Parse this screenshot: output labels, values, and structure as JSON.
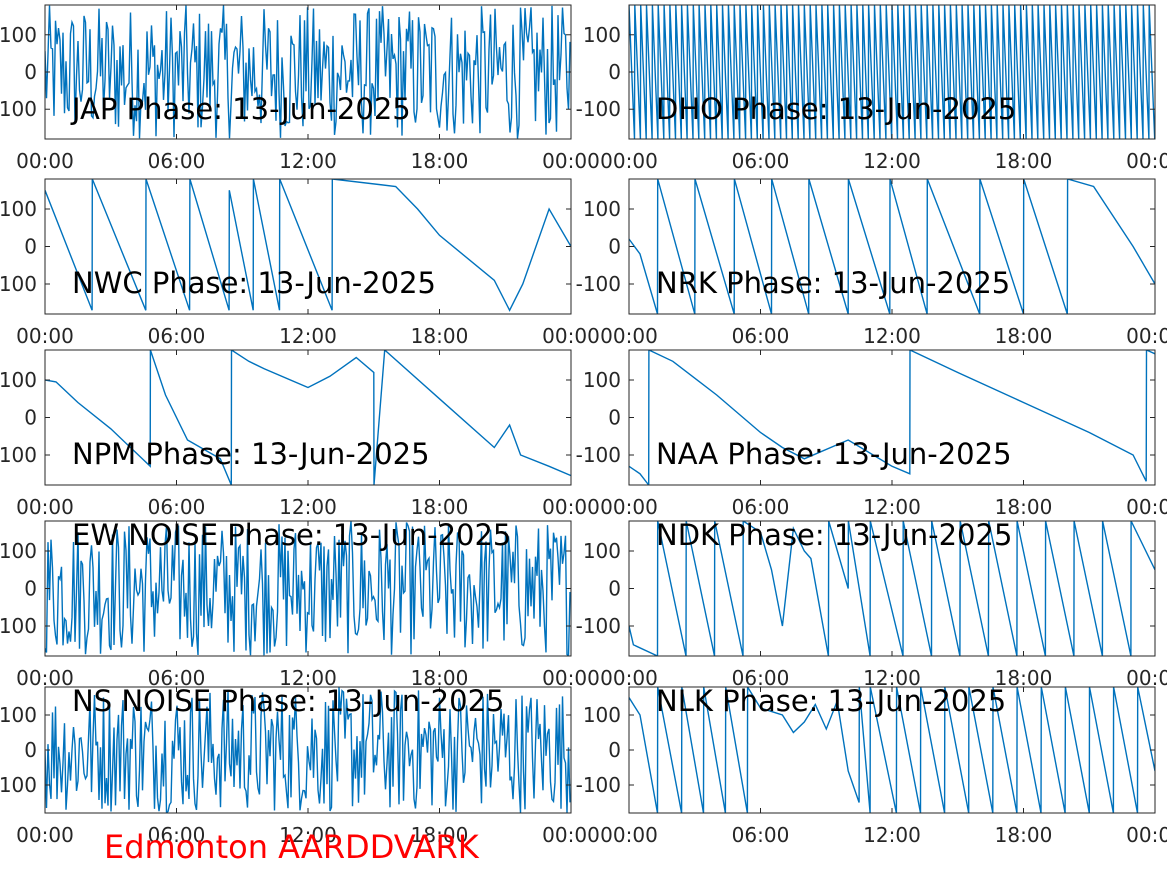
{
  "footer_label": "Edmonton AARDDVARK",
  "trace_color": "#0072BD",
  "chart_data": [
    {
      "type": "line",
      "title": "JAP Phase: 13-Jun-2025",
      "pattern": "noise",
      "xticklabels": [
        "00:00",
        "06:00",
        "12:00",
        "18:00",
        "00:00"
      ],
      "yticklabels": [
        "100",
        "0",
        "100"
      ],
      "xlim_hours": [
        0,
        24
      ],
      "ylim": [
        -180,
        180
      ],
      "x_hours": [
        0,
        24
      ],
      "y": [
        0,
        0
      ]
    },
    {
      "type": "line",
      "title": "DHO Phase: 13-Jun-2025",
      "pattern": "fastwrap",
      "xticklabels": [
        "00:00",
        "06:00",
        "12:00",
        "18:00",
        "00:00"
      ],
      "yticklabels": [
        "100",
        "0",
        "-100"
      ],
      "xlim_hours": [
        0,
        24
      ],
      "ylim": [
        -180,
        180
      ],
      "x_hours": [
        0,
        24
      ],
      "y": [
        0,
        0
      ]
    },
    {
      "type": "line",
      "title": "NWC Phase: 13-Jun-2025",
      "pattern": "trace",
      "xticklabels": [
        "00:00",
        "06:00",
        "12:00",
        "18:00",
        "00:00"
      ],
      "yticklabels": [
        "100",
        "0",
        "100"
      ],
      "xlim_hours": [
        0,
        24
      ],
      "ylim": [
        -180,
        180
      ],
      "x_hours": [
        0.0,
        2.15,
        2.16,
        4.6,
        4.61,
        6.6,
        6.61,
        8.4,
        8.41,
        9.5,
        9.51,
        10.7,
        10.71,
        13.1,
        13.11,
        16.0,
        17.0,
        18.0,
        20.5,
        21.2,
        21.8,
        23.0,
        24.0
      ],
      "y": [
        150,
        -170,
        180,
        -170,
        180,
        -170,
        180,
        -170,
        150,
        -170,
        180,
        -170,
        180,
        -170,
        180,
        160,
        100,
        30,
        -90,
        -170,
        -100,
        100,
        0
      ]
    },
    {
      "type": "line",
      "title": "NRK Phase: 13-Jun-2025",
      "pattern": "trace",
      "xticklabels": [
        "00:00",
        "06:00",
        "12:00",
        "18:00",
        "00:00"
      ],
      "yticklabels": [
        "100",
        "0",
        "-100"
      ],
      "xlim_hours": [
        0,
        24
      ],
      "ylim": [
        -180,
        180
      ],
      "x_hours": [
        0.0,
        0.5,
        1.3,
        1.31,
        3.0,
        3.01,
        4.8,
        4.81,
        6.5,
        6.51,
        8.2,
        8.21,
        10.0,
        10.01,
        11.9,
        11.91,
        13.6,
        13.61,
        16.0,
        16.01,
        18.0,
        18.01,
        20.0,
        20.01,
        21.2,
        23.0,
        24.0
      ],
      "y": [
        20,
        -20,
        -180,
        180,
        -180,
        180,
        -180,
        180,
        -180,
        180,
        -180,
        180,
        -180,
        180,
        -180,
        180,
        -180,
        180,
        -180,
        180,
        -180,
        180,
        -180,
        180,
        160,
        0,
        -100
      ]
    },
    {
      "type": "line",
      "title": "NPM Phase: 13-Jun-2025",
      "pattern": "trace",
      "xticklabels": [
        "00:00",
        "06:00",
        "12:00",
        "18:00",
        "00:00"
      ],
      "yticklabels": [
        "100",
        "0",
        "100"
      ],
      "xlim_hours": [
        0,
        24
      ],
      "ylim": [
        -180,
        180
      ],
      "x_hours": [
        0.0,
        0.5,
        1.5,
        3.0,
        4.8,
        4.81,
        5.5,
        6.5,
        8.0,
        8.5,
        8.51,
        9.3,
        10.0,
        12.0,
        13.0,
        14.2,
        15.0,
        15.01,
        15.5,
        18.0,
        20.5,
        21.2,
        21.7,
        23.0,
        24.0
      ],
      "y": [
        100,
        95,
        40,
        -30,
        -130,
        180,
        60,
        -60,
        -110,
        -180,
        180,
        150,
        130,
        80,
        110,
        160,
        120,
        -180,
        180,
        50,
        -80,
        -20,
        -100,
        -130,
        -155
      ]
    },
    {
      "type": "line",
      "title": "NAA Phase: 13-Jun-2025",
      "pattern": "trace",
      "xticklabels": [
        "00:00",
        "06:00",
        "12:00",
        "18:00",
        "00:00"
      ],
      "yticklabels": [
        "100",
        "0",
        "-100"
      ],
      "xlim_hours": [
        0,
        24
      ],
      "ylim": [
        -180,
        180
      ],
      "x_hours": [
        0.0,
        0.5,
        0.9,
        0.91,
        2.0,
        4.0,
        6.0,
        7.0,
        8.0,
        10.0,
        12.0,
        12.81,
        12.82,
        15.0,
        18.0,
        21.0,
        23.0,
        23.6,
        23.61,
        24.0
      ],
      "y": [
        -130,
        -150,
        -180,
        180,
        150,
        60,
        -40,
        -80,
        -110,
        -60,
        -130,
        -150,
        180,
        120,
        40,
        -40,
        -100,
        -170,
        180,
        170
      ]
    },
    {
      "type": "line",
      "title": "EW NOISE Phase: 13-Jun-2025",
      "pattern": "noise",
      "xticklabels": [
        "00:00",
        "06:00",
        "12:00",
        "18:00",
        "00:00"
      ],
      "yticklabels": [
        "100",
        "0",
        "100"
      ],
      "xlim_hours": [
        0,
        24
      ],
      "ylim": [
        -180,
        180
      ],
      "x_hours": [
        0,
        24
      ],
      "y": [
        0,
        0
      ]
    },
    {
      "type": "line",
      "title": "NDK Phase: 13-Jun-2025",
      "pattern": "trace",
      "xticklabels": [
        "00:00",
        "06:00",
        "12:00",
        "18:00",
        "00:00"
      ],
      "yticklabels": [
        "100",
        "0",
        "-100"
      ],
      "xlim_hours": [
        0,
        24
      ],
      "ylim": [
        -180,
        180
      ],
      "x_hours": [
        0.0,
        0.2,
        1.3,
        1.31,
        2.6,
        2.61,
        3.9,
        3.91,
        5.2,
        5.21,
        6.0,
        6.5,
        7.0,
        7.5,
        8.0,
        8.3,
        9.1,
        9.11,
        10.0,
        10.01,
        11.0,
        11.01,
        12.5,
        12.51,
        13.8,
        13.81,
        15.1,
        15.11,
        16.4,
        16.41,
        17.7,
        17.71,
        19.0,
        19.01,
        20.3,
        20.31,
        21.6,
        21.61,
        22.9,
        22.91,
        24.0
      ],
      "y": [
        -100,
        -150,
        -180,
        180,
        -180,
        180,
        -180,
        180,
        -180,
        180,
        150,
        50,
        -100,
        160,
        100,
        80,
        -180,
        180,
        0,
        180,
        -180,
        180,
        -180,
        180,
        -180,
        180,
        -180,
        180,
        -180,
        180,
        -180,
        180,
        -180,
        180,
        -180,
        180,
        -180,
        180,
        -180,
        180,
        50
      ]
    },
    {
      "type": "line",
      "title": "NS NOISE Phase: 13-Jun-2025",
      "pattern": "noise",
      "xticklabels": [
        "00:00",
        "06:00",
        "12:00",
        "18:00",
        "00:00"
      ],
      "yticklabels": [
        "100",
        "0",
        "100"
      ],
      "xlim_hours": [
        0,
        24
      ],
      "ylim": [
        -180,
        180
      ],
      "x_hours": [
        0,
        24
      ],
      "y": [
        0,
        0
      ]
    },
    {
      "type": "line",
      "title": "NLK Phase: 13-Jun-2025",
      "pattern": "trace",
      "xticklabels": [
        "00:00",
        "06:00",
        "12:00",
        "18:00",
        "00:00"
      ],
      "yticklabels": [
        "100",
        "0",
        "-100"
      ],
      "xlim_hours": [
        0,
        24
      ],
      "ylim": [
        -180,
        180
      ],
      "x_hours": [
        0.0,
        0.5,
        1.3,
        1.31,
        2.4,
        2.41,
        3.4,
        3.41,
        4.4,
        4.41,
        5.4,
        5.41,
        6.0,
        7.0,
        7.5,
        8.0,
        8.5,
        9.0,
        9.5,
        10.0,
        10.5,
        10.51,
        11.0,
        11.01,
        12.2,
        12.21,
        13.3,
        13.31,
        14.4,
        14.41,
        15.5,
        15.51,
        16.6,
        16.61,
        17.7,
        17.71,
        18.8,
        18.81,
        19.9,
        19.91,
        21.0,
        21.01,
        22.1,
        22.11,
        23.2,
        23.21,
        24.0
      ],
      "y": [
        150,
        100,
        -180,
        180,
        -180,
        180,
        -180,
        180,
        -180,
        180,
        -180,
        180,
        120,
        100,
        50,
        80,
        130,
        60,
        140,
        -60,
        -150,
        180,
        -180,
        180,
        -180,
        180,
        -180,
        180,
        -180,
        180,
        -180,
        180,
        -180,
        180,
        -180,
        180,
        -180,
        180,
        -180,
        180,
        -180,
        180,
        -180,
        180,
        -180,
        180,
        -60
      ]
    }
  ]
}
